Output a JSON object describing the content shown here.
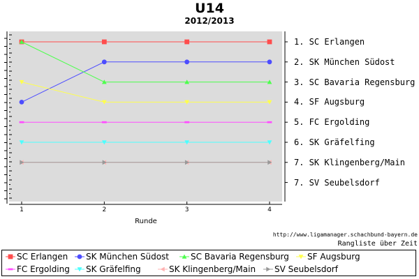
{
  "title": "U14",
  "subtitle": "2012/2013",
  "source": "http://www.ligamanager.schachbund-bayern.de",
  "note": "Rangliste über Zeit",
  "chart_data": {
    "type": "line",
    "xlabel": "Runde",
    "ylabel": "",
    "x": [
      1,
      2,
      3,
      4
    ],
    "xlim": [
      1,
      4
    ],
    "ylim": [
      1,
      8
    ],
    "y_inverted": true,
    "grid": false,
    "legend_position": "bottom",
    "rank_labels": [
      "1. SC Erlangen",
      "2. SK München Südost",
      "3. SC Bavaria Regensburg",
      "4. SF Augsburg",
      "5. FC Ergolding",
      "6. SK Gräfelfing",
      "7. SK Klingenberg/Main",
      "7. SV Seubelsdorf"
    ],
    "series": [
      {
        "name": "SC Erlangen",
        "values": [
          1,
          1,
          1,
          1
        ],
        "color": "#ff4d4d",
        "marker": "square"
      },
      {
        "name": "SK München Südost",
        "values": [
          4,
          2,
          2,
          2
        ],
        "color": "#4d4dff",
        "marker": "circle"
      },
      {
        "name": "SC Bavaria Regensburg",
        "values": [
          1,
          3,
          3,
          3
        ],
        "color": "#4dff4d",
        "marker": "triangle-up"
      },
      {
        "name": "SF Augsburg",
        "values": [
          3,
          4,
          4,
          4
        ],
        "color": "#ffff4d",
        "marker": "triangle-down"
      },
      {
        "name": "FC Ergolding",
        "values": [
          5,
          5,
          5,
          5
        ],
        "color": "#ff4dff",
        "marker": "dash"
      },
      {
        "name": "SK Gräfelfing",
        "values": [
          6,
          6,
          6,
          6
        ],
        "color": "#4dffff",
        "marker": "triangle-down"
      },
      {
        "name": "SK Klingenberg/Main",
        "values": [
          7,
          7,
          7,
          7
        ],
        "color": "#ffb3b3",
        "marker": "triangle-left"
      },
      {
        "name": "SV Seubelsdorf",
        "values": [
          7,
          7,
          7,
          7
        ],
        "color": "#999999",
        "marker": "triangle-right"
      }
    ]
  }
}
